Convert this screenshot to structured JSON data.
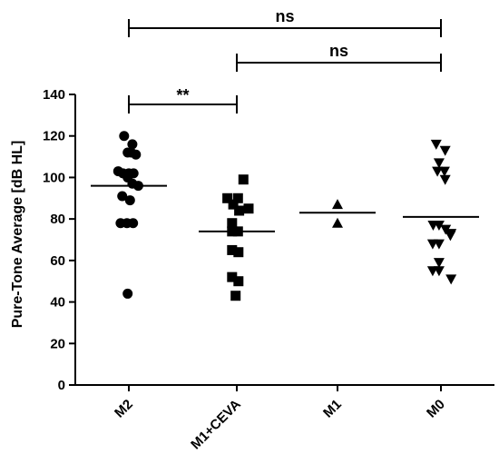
{
  "chart_data": {
    "type": "scatter",
    "ylabel": "Pure-Tone Average [dB HL]",
    "xlabel": "",
    "ylim": [
      0,
      140
    ],
    "yticks": [
      0,
      20,
      40,
      60,
      80,
      100,
      120,
      140
    ],
    "grid": false,
    "categories": [
      "M2",
      "M1+CEVA",
      "M1",
      "M0"
    ],
    "series": [
      {
        "category": "M2",
        "marker": "circle",
        "mean": 96,
        "points": [
          {
            "dx": -0.2,
            "y": 120
          },
          {
            "dx": 0.15,
            "y": 116
          },
          {
            "dx": -0.05,
            "y": 112
          },
          {
            "dx": 0.1,
            "y": 112
          },
          {
            "dx": 0.3,
            "y": 111
          },
          {
            "dx": -0.45,
            "y": 103
          },
          {
            "dx": -0.25,
            "y": 102
          },
          {
            "dx": 0.0,
            "y": 102
          },
          {
            "dx": 0.2,
            "y": 102
          },
          {
            "dx": -0.05,
            "y": 100
          },
          {
            "dx": 0.15,
            "y": 97
          },
          {
            "dx": 0.4,
            "y": 96
          },
          {
            "dx": -0.28,
            "y": 91
          },
          {
            "dx": 0.05,
            "y": 89
          },
          {
            "dx": -0.35,
            "y": 78
          },
          {
            "dx": -0.08,
            "y": 78
          },
          {
            "dx": 0.18,
            "y": 78
          },
          {
            "dx": -0.05,
            "y": 44
          }
        ]
      },
      {
        "category": "M1+CEVA",
        "marker": "square",
        "mean": 74,
        "points": [
          {
            "dx": 0.28,
            "y": 99
          },
          {
            "dx": -0.4,
            "y": 90
          },
          {
            "dx": 0.05,
            "y": 90
          },
          {
            "dx": -0.15,
            "y": 87
          },
          {
            "dx": 0.5,
            "y": 85
          },
          {
            "dx": 0.1,
            "y": 84
          },
          {
            "dx": -0.2,
            "y": 78
          },
          {
            "dx": -0.2,
            "y": 74
          },
          {
            "dx": 0.05,
            "y": 74
          },
          {
            "dx": -0.2,
            "y": 65
          },
          {
            "dx": 0.07,
            "y": 64
          },
          {
            "dx": -0.2,
            "y": 52
          },
          {
            "dx": 0.07,
            "y": 50
          },
          {
            "dx": -0.05,
            "y": 43
          }
        ]
      },
      {
        "category": "M1",
        "marker": "triangle-up",
        "mean": 83,
        "points": [
          {
            "dx": 0.0,
            "y": 87
          },
          {
            "dx": 0.0,
            "y": 78
          }
        ]
      },
      {
        "category": "M0",
        "marker": "triangle-down",
        "mean": 81,
        "points": [
          {
            "dx": -0.2,
            "y": 116
          },
          {
            "dx": 0.18,
            "y": 113
          },
          {
            "dx": -0.08,
            "y": 107
          },
          {
            "dx": -0.15,
            "y": 103
          },
          {
            "dx": 0.15,
            "y": 103
          },
          {
            "dx": 0.18,
            "y": 99
          },
          {
            "dx": -0.33,
            "y": 77
          },
          {
            "dx": -0.08,
            "y": 77
          },
          {
            "dx": 0.2,
            "y": 75
          },
          {
            "dx": 0.43,
            "y": 73
          },
          {
            "dx": 0.4,
            "y": 72
          },
          {
            "dx": -0.35,
            "y": 68
          },
          {
            "dx": -0.08,
            "y": 68
          },
          {
            "dx": -0.08,
            "y": 59
          },
          {
            "dx": -0.35,
            "y": 55
          },
          {
            "dx": -0.08,
            "y": 55
          },
          {
            "dx": 0.43,
            "y": 51
          }
        ]
      }
    ],
    "significance": [
      {
        "from": "M2",
        "to": "M1+CEVA",
        "label": "**"
      },
      {
        "from": "M1+CEVA",
        "to": "M0",
        "label": "ns"
      },
      {
        "from": "M2",
        "to": "M0",
        "label": "ns"
      }
    ]
  }
}
